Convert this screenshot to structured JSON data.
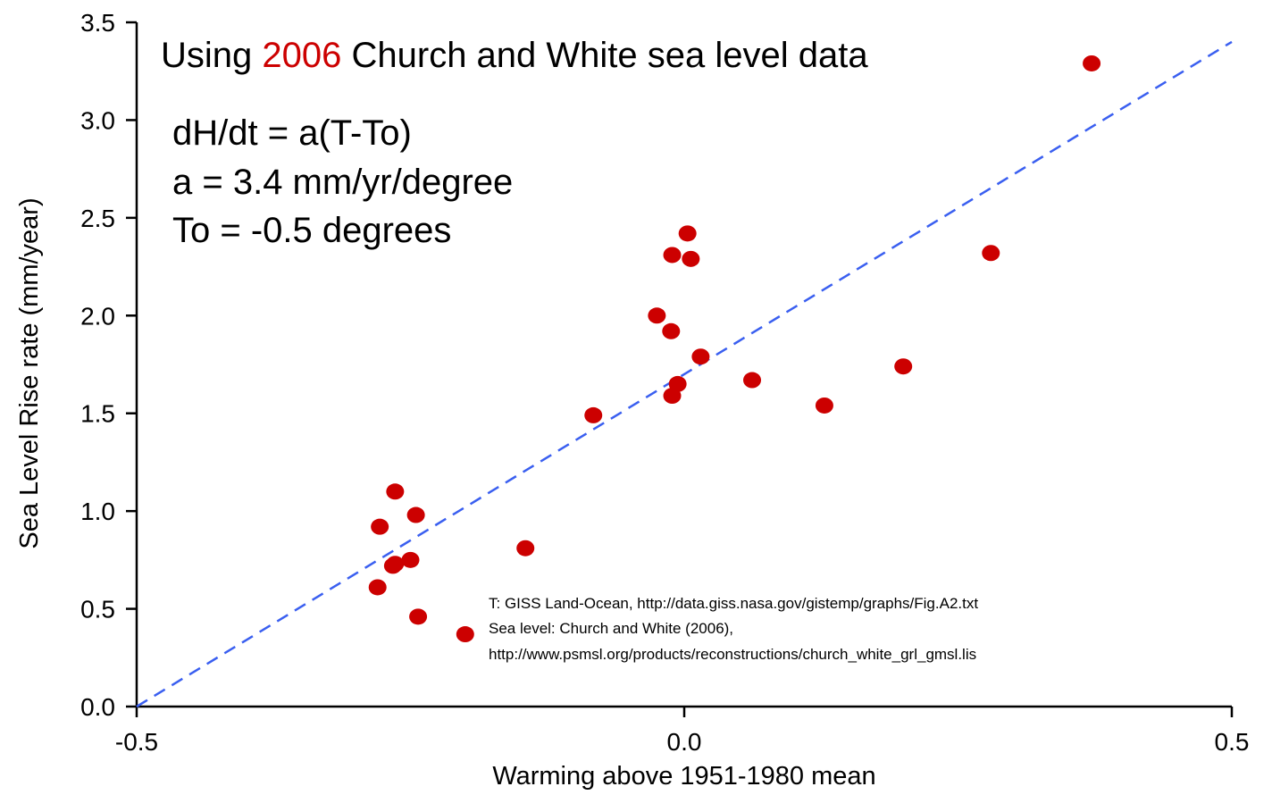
{
  "chart_data": {
    "type": "scatter",
    "title_parts": [
      "Using ",
      "2006",
      " Church and White sea level data"
    ],
    "title_highlight_color": "#cc0000",
    "equation_lines": [
      "dH/dt = a(T-To)",
      "a = 3.4 mm/yr/degree",
      "To = -0.5 degrees"
    ],
    "xlabel": "Warming above 1951-1980 mean",
    "ylabel": "Sea Level Rise rate (mm/year)",
    "xlim": [
      -0.5,
      0.5
    ],
    "ylim": [
      0.0,
      3.5
    ],
    "x_ticks": [
      -0.5,
      0.0,
      0.5
    ],
    "x_tick_labels": [
      "-0.5",
      "0.0",
      "0.5"
    ],
    "y_ticks": [
      0.0,
      0.5,
      1.0,
      1.5,
      2.0,
      2.5,
      3.0,
      3.5
    ],
    "y_tick_labels": [
      "0.0",
      "0.5",
      "1.0",
      "1.5",
      "2.0",
      "2.5",
      "3.0",
      "3.5"
    ],
    "grid": false,
    "series": [
      {
        "point_color": "#cc0000",
        "points": [
          [
            -0.28,
            0.61
          ],
          [
            -0.278,
            0.92
          ],
          [
            -0.266,
            0.72
          ],
          [
            -0.264,
            0.73
          ],
          [
            -0.264,
            1.1
          ],
          [
            -0.25,
            0.75
          ],
          [
            -0.245,
            0.98
          ],
          [
            -0.243,
            0.46
          ],
          [
            -0.2,
            0.37
          ],
          [
            -0.145,
            0.81
          ],
          [
            -0.083,
            1.49
          ],
          [
            -0.025,
            2.0
          ],
          [
            -0.012,
            1.92
          ],
          [
            -0.011,
            2.31
          ],
          [
            -0.011,
            1.59
          ],
          [
            -0.006,
            1.65
          ],
          [
            0.003,
            2.42
          ],
          [
            0.006,
            2.29
          ],
          [
            0.015,
            1.79
          ],
          [
            0.062,
            1.67
          ],
          [
            0.128,
            1.54
          ],
          [
            0.2,
            1.74
          ],
          [
            0.28,
            2.32
          ],
          [
            0.372,
            3.29
          ]
        ]
      }
    ],
    "fit_line": {
      "color": "#3a5ff0",
      "style": "dashed",
      "x": [
        -0.5,
        0.5
      ],
      "y": [
        0.0,
        3.4
      ]
    },
    "annotations": [
      "T: GISS Land-Ocean, http://data.giss.nasa.gov/gistemp/graphs/Fig.A2.txt",
      "Sea level: Church and White (2006),",
      "http://www.psmsl.org/products/reconstructions/church_white_grl_gmsl.lis"
    ]
  }
}
